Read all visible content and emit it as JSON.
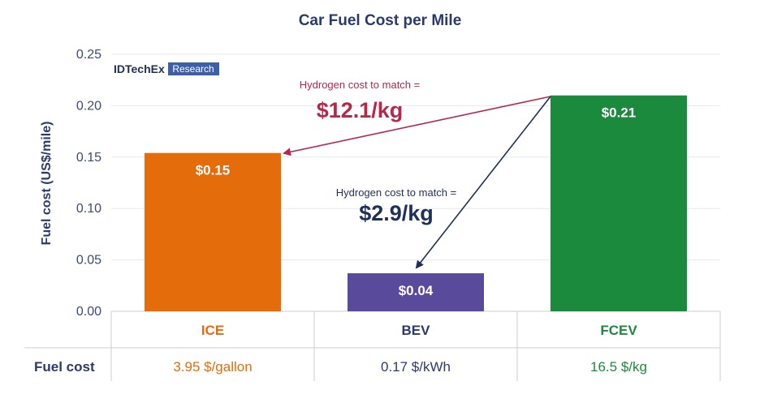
{
  "chart_data": {
    "type": "bar",
    "title": "Car Fuel Cost per Mile",
    "ylabel": "Fuel cost (US$/mile)",
    "xlabel": "",
    "ylim": [
      0,
      0.25
    ],
    "yticks": [
      "0.00",
      "0.05",
      "0.10",
      "0.15",
      "0.20",
      "0.25"
    ],
    "categories": [
      "ICE",
      "BEV",
      "FCEV"
    ],
    "values": [
      0.154,
      0.037,
      0.21
    ],
    "data_labels": [
      "$0.15",
      "$0.04",
      "$0.21"
    ],
    "colors": [
      "#e46c0a",
      "#5a4a9c",
      "#1b8a3c"
    ],
    "category_colors": [
      "#e46c0a",
      "#2b3a6b",
      "#1b8a3c"
    ],
    "fuel_cost_label": "Fuel cost",
    "fuel_costs": [
      "3.95 $/gallon",
      "0.17 $/kWh",
      "16.5 $/kg"
    ],
    "annotations": [
      {
        "small": "Hydrogen cost to match =",
        "big": "$12.1/kg",
        "color": "#b5284a"
      },
      {
        "small": "Hydrogen cost to match =",
        "big": "$2.9/kg",
        "color": "#1f2f5c"
      }
    ],
    "logo": {
      "brand": "IDTechEx",
      "tag": "Research"
    }
  }
}
